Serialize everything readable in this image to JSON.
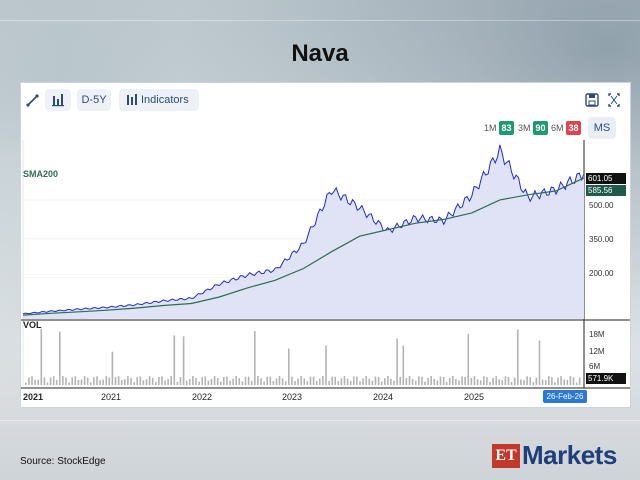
{
  "page": {
    "title": "Nava"
  },
  "toolbar": {
    "draw_icon": "pencil-icon",
    "chart_type_icon": "bar-chart-icon",
    "period_label": "D-5Y",
    "indicators_label": "Indicators",
    "save_icon": "save-icon",
    "fullscreen_icon": "expand-icon"
  },
  "ranges": {
    "items": [
      {
        "label": "1M",
        "value": "83",
        "color": "#1f9a6f"
      },
      {
        "label": "3M",
        "value": "90",
        "color": "#1f9a6f"
      },
      {
        "label": "6M",
        "value": "38",
        "color": "#e0434f"
      }
    ],
    "ms_label": "MS"
  },
  "chart": {
    "sma_label": "SMA200",
    "vol_label": "VOL",
    "price_axis": [
      "500.00",
      "350.00",
      "200.00"
    ],
    "vol_axis": [
      "18M",
      "12M",
      "6M"
    ],
    "last_price": "601.05",
    "sma_value": "585.56",
    "last_volume": "571.9K",
    "x_labels": [
      "2021",
      "2021",
      "2022",
      "2023",
      "2024",
      "2025"
    ],
    "last_date": "26-Feb-26",
    "colors": {
      "price": "#1f2ccf",
      "sma": "#2f6b52",
      "fill": "#dfe3f5",
      "volume": "#b3b3b3"
    }
  },
  "chart_data": {
    "type": "line",
    "x_dates": [
      "2021-02",
      "2021-06",
      "2021-10",
      "2022-02",
      "2022-06",
      "2022-10",
      "2023-02",
      "2023-06",
      "2023-10",
      "2024-01",
      "2024-04",
      "2024-06",
      "2024-08",
      "2024-11",
      "2025-01",
      "2025-04",
      "2025-06",
      "2025-08",
      "2025-10",
      "2025-12",
      "2026-02"
    ],
    "series": [
      {
        "name": "",
        "values": [
          60,
          70,
          78,
          85,
          95,
          110,
          120,
          175,
          210,
          230,
          330,
          540,
          470,
          380,
          430,
          420,
          520,
          690,
          510,
          540,
          601
        ]
      },
      {
        "name": "SMA200",
        "values": [
          55,
          62,
          68,
          74,
          82,
          92,
          100,
          125,
          160,
          190,
          235,
          300,
          360,
          385,
          410,
          425,
          450,
          500,
          520,
          535,
          585
        ]
      }
    ],
    "y_ticks": [
      500,
      350,
      200
    ],
    "volume_ticks_millions": [
      18,
      12,
      6
    ],
    "last_price": 601.05,
    "sma200_last": 585.56,
    "last_volume_thousands": 571.9
  },
  "footer": {
    "source": "Source:  StockEdge",
    "logo_et": "ET",
    "logo_markets": "Markets"
  }
}
